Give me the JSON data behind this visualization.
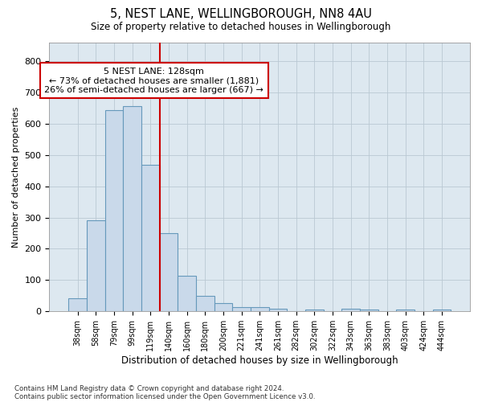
{
  "title1": "5, NEST LANE, WELLINGBOROUGH, NN8 4AU",
  "title2": "Size of property relative to detached houses in Wellingborough",
  "xlabel": "Distribution of detached houses by size in Wellingborough",
  "ylabel": "Number of detached properties",
  "footnote1": "Contains HM Land Registry data © Crown copyright and database right 2024.",
  "footnote2": "Contains public sector information licensed under the Open Government Licence v3.0.",
  "annotation_line1": "5 NEST LANE: 128sqm",
  "annotation_line2": "← 73% of detached houses are smaller (1,881)",
  "annotation_line3": "26% of semi-detached houses are larger (667) →",
  "bar_color": "#c9d9ea",
  "bar_edge_color": "#6699bb",
  "bar_line_color": "#cc0000",
  "bg_color": "#dde8f0",
  "annotation_box_edge": "#cc0000",
  "categories": [
    "38sqm",
    "58sqm",
    "79sqm",
    "99sqm",
    "119sqm",
    "140sqm",
    "160sqm",
    "180sqm",
    "200sqm",
    "221sqm",
    "241sqm",
    "261sqm",
    "282sqm",
    "302sqm",
    "322sqm",
    "343sqm",
    "363sqm",
    "383sqm",
    "403sqm",
    "424sqm",
    "444sqm"
  ],
  "values": [
    43,
    291,
    643,
    655,
    468,
    251,
    113,
    49,
    27,
    15,
    13,
    9,
    1,
    6,
    1,
    8,
    6,
    1,
    5,
    1,
    5
  ],
  "red_line_bar_index": 4,
  "ylim": [
    0,
    860
  ],
  "yticks": [
    0,
    100,
    200,
    300,
    400,
    500,
    600,
    700,
    800
  ],
  "grid_color": "#bac8d3"
}
